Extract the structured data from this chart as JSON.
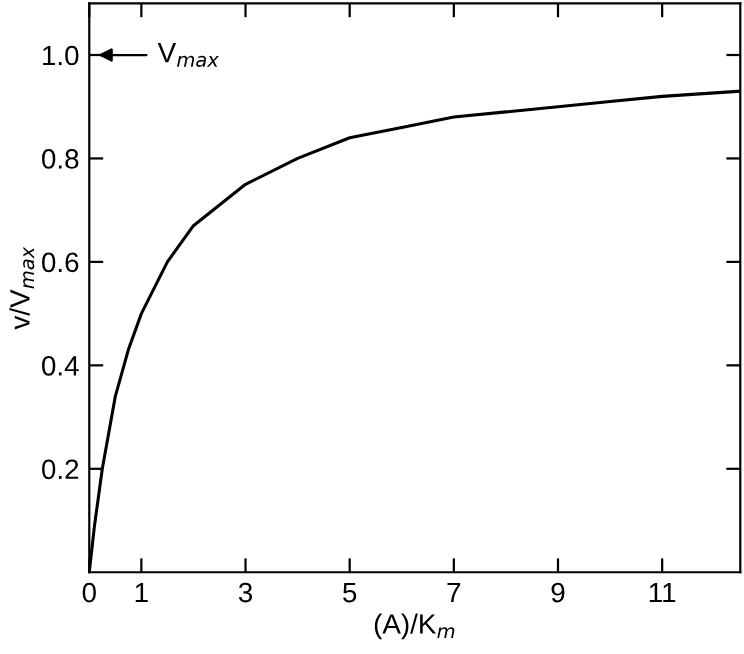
{
  "chart_data": {
    "type": "line",
    "xlabel": "(A)/K$_{m}$",
    "ylabel": "v/V$_{max}$",
    "annotations": [
      "V$_{max}$"
    ],
    "x": [
      0,
      0.1,
      0.25,
      0.5,
      0.75,
      1,
      1.5,
      2,
      3,
      4,
      5,
      6,
      7,
      8,
      9,
      10,
      11,
      12.5
    ],
    "series": [
      {
        "color": "#000000",
        "values": [
          0,
          0.09,
          0.2,
          0.34,
          0.43,
          0.5,
          0.6,
          0.67,
          0.75,
          0.8,
          0.84,
          0.86,
          0.88,
          0.89,
          0.9,
          0.91,
          0.92,
          0.93
        ]
      }
    ],
    "xlim": [
      0,
      12.5
    ],
    "ylim": [
      0,
      1.1
    ],
    "xticks": [
      0,
      1,
      3,
      5,
      7,
      9,
      11
    ],
    "yticks": [
      0.2,
      0.4,
      0.6,
      0.8,
      {
        "value": 1,
        "label": "1.0"
      }
    ],
    "grid": false,
    "legend": false,
    "marker": "none",
    "line_style": "solid"
  }
}
